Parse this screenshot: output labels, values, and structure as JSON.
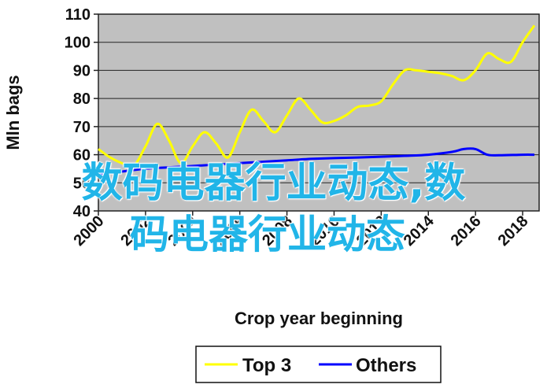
{
  "chart_data": {
    "type": "line",
    "ylabel": "Mln bags",
    "xlabel": "Crop year beginning",
    "ylim": [
      40,
      110
    ],
    "xlim": [
      2000,
      2018.7
    ],
    "yticks": [
      40,
      50,
      60,
      70,
      80,
      90,
      100,
      110
    ],
    "xticks": [
      "2000",
      "2002",
      "2004",
      "2006",
      "2008",
      "2010",
      "2012",
      "2014",
      "2016",
      "2018"
    ],
    "grid": "horizontal",
    "legend_position": "bottom",
    "background": "#c0c0c0",
    "series": [
      {
        "name": "Top 3",
        "color": "#ffff00",
        "x": [
          2000,
          2000.5,
          2001,
          2001.5,
          2002,
          2002.5,
          2003,
          2003.5,
          2004,
          2004.5,
          2005,
          2005.5,
          2006,
          2006.5,
          2007,
          2007.5,
          2008,
          2008.5,
          2009,
          2009.5,
          2010,
          2010.5,
          2011,
          2011.5,
          2012,
          2012.5,
          2013,
          2013.5,
          2014,
          2014.5,
          2015,
          2015.5,
          2016,
          2016.5,
          2017,
          2017.5,
          2018,
          2018.5
        ],
        "values": [
          62,
          59,
          57,
          56,
          63,
          71,
          65,
          57,
          63,
          68,
          64,
          59,
          68,
          76,
          72,
          68,
          74,
          80,
          76,
          71.5,
          72,
          74,
          77,
          77.5,
          79,
          85,
          90,
          90,
          89.5,
          89,
          88,
          86.5,
          90,
          96,
          94,
          93,
          100,
          106
        ]
      },
      {
        "name": "Others",
        "color": "#0000ff",
        "x": [
          2000,
          2001,
          2002,
          2003,
          2004,
          2005,
          2006,
          2007,
          2008,
          2009,
          2010,
          2011,
          2012,
          2013,
          2014,
          2015,
          2015.5,
          2016,
          2016.5,
          2017,
          2018,
          2018.5
        ],
        "values": [
          53,
          54,
          55,
          55.5,
          56,
          56.5,
          57,
          57.5,
          58,
          58.5,
          58.8,
          59,
          59.3,
          59.6,
          60,
          61,
          62,
          62,
          60,
          59.8,
          60,
          60
        ]
      }
    ]
  },
  "overlay": {
    "line1": "数码电器行业动态,数",
    "line2": "码电器行业动态"
  }
}
